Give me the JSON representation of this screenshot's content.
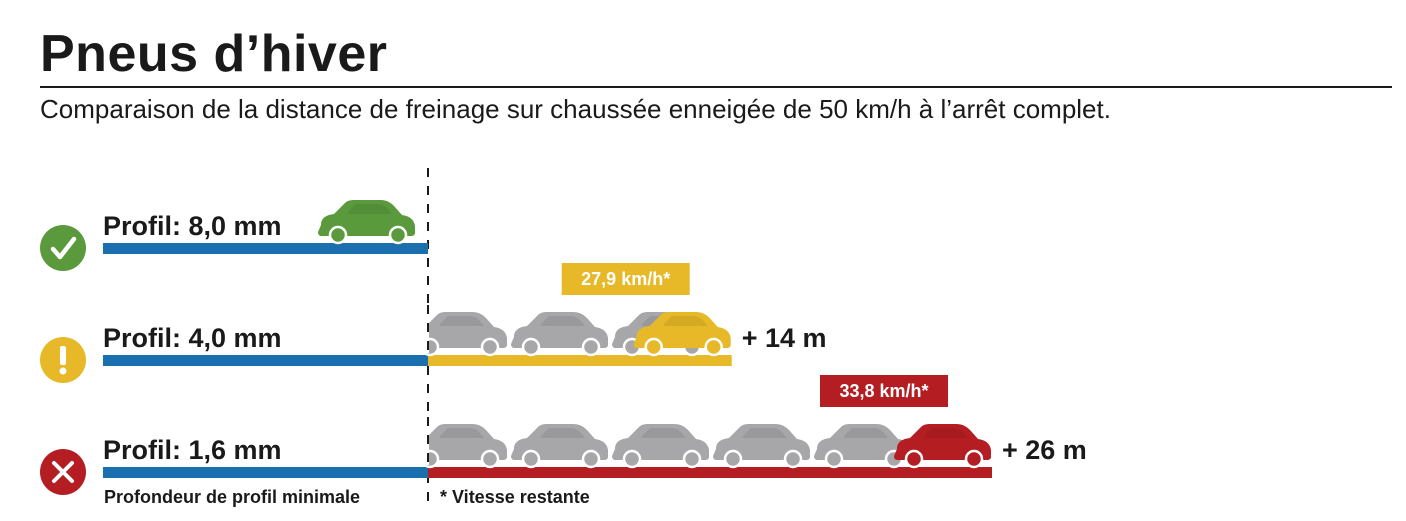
{
  "header": {
    "title": "Pneus d’hiver",
    "subtitle": "Comparaison de la distance de freinage sur chaussée enneigée de 50 km/h à l’arrêt complet."
  },
  "footnotes": {
    "min_depth": "Profondeur de profil minimale",
    "speed": "* Vitesse restante"
  },
  "colors": {
    "blue": "#1a6fae",
    "green": "#5a9a3c",
    "yellow": "#e7b928",
    "red": "#b41e22",
    "gray": "#a7a7a9"
  },
  "chart_data": {
    "type": "bar",
    "series": [
      {
        "label": "Profil: 8,0 mm",
        "status_icon": "check-icon",
        "status": "ok",
        "color": "#5a9a3c",
        "extra_m": 0,
        "extra_label": "",
        "speed_label": "",
        "ghost_cars": 0
      },
      {
        "label": "Profil: 4,0 mm",
        "status_icon": "exclamation-icon",
        "status": "warning",
        "color": "#e7b928",
        "extra_m": 14,
        "extra_label": "+ 14 m",
        "speed_label": "27,9 km/h*",
        "ghost_cars": 3
      },
      {
        "label": "Profil: 1,6 mm",
        "status_icon": "cross-icon",
        "status": "danger",
        "color": "#b41e22",
        "extra_m": 26,
        "extra_label": "+ 26 m",
        "speed_label": "33,8 km/h*",
        "ghost_cars": 5
      }
    ]
  }
}
